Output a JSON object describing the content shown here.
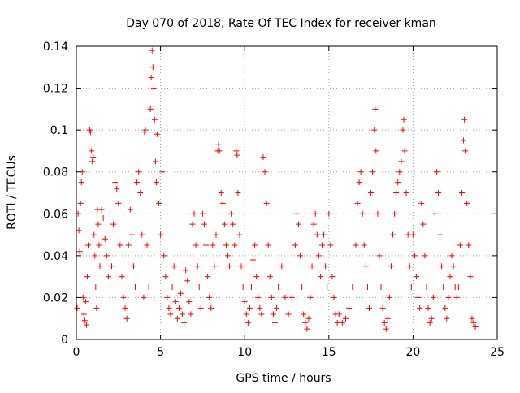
{
  "chart_data": {
    "type": "scatter",
    "title": "Day 070 of 2018, Rate Of TEC Index for receiver kman",
    "xlabel": "GPS time / hours",
    "ylabel": "ROTI / TECUs",
    "xlim": [
      0,
      25
    ],
    "ylim": [
      0,
      0.14
    ],
    "x_ticks": [
      0,
      5,
      10,
      15,
      20,
      25
    ],
    "x_tick_labels": [
      "0",
      "5",
      "10",
      "15",
      "20",
      "25"
    ],
    "y_ticks": [
      0,
      0.02,
      0.04,
      0.06,
      0.08,
      0.1,
      0.12,
      0.14
    ],
    "y_tick_labels": [
      "0",
      "0.02",
      "0.04",
      "0.06",
      "0.08",
      "0.1",
      "0.12",
      "0.14"
    ],
    "grid": true,
    "marker": "+",
    "series": [
      {
        "name": "ROTI",
        "color": "#ff0000",
        "points": [
          [
            0.05,
            0.015
          ],
          [
            0.1,
            0.06
          ],
          [
            0.15,
            0.052
          ],
          [
            0.2,
            0.042
          ],
          [
            0.25,
            0.065
          ],
          [
            0.3,
            0.075
          ],
          [
            0.35,
            0.08
          ],
          [
            0.4,
            0.02
          ],
          [
            0.45,
            0.012
          ],
          [
            0.5,
            0.009
          ],
          [
            0.55,
            0.018
          ],
          [
            0.6,
            0.007
          ],
          [
            0.65,
            0.03
          ],
          [
            0.7,
            0.045
          ],
          [
            0.8,
            0.1
          ],
          [
            0.85,
            0.099
          ],
          [
            0.9,
            0.09
          ],
          [
            0.95,
            0.085
          ],
          [
            1.0,
            0.087
          ],
          [
            1.05,
            0.05
          ],
          [
            1.1,
            0.04
          ],
          [
            1.15,
            0.025
          ],
          [
            1.2,
            0.015
          ],
          [
            1.25,
            0.062
          ],
          [
            1.3,
            0.055
          ],
          [
            1.35,
            0.045
          ],
          [
            1.4,
            0.035
          ],
          [
            1.5,
            0.062
          ],
          [
            1.6,
            0.058
          ],
          [
            1.7,
            0.048
          ],
          [
            1.8,
            0.04
          ],
          [
            1.9,
            0.03
          ],
          [
            2.0,
            0.025
          ],
          [
            2.1,
            0.035
          ],
          [
            2.2,
            0.055
          ],
          [
            2.3,
            0.075
          ],
          [
            2.4,
            0.072
          ],
          [
            2.5,
            0.065
          ],
          [
            2.6,
            0.045
          ],
          [
            2.7,
            0.03
          ],
          [
            2.8,
            0.02
          ],
          [
            2.9,
            0.015
          ],
          [
            3.0,
            0.01
          ],
          [
            3.1,
            0.045
          ],
          [
            3.2,
            0.062
          ],
          [
            3.3,
            0.05
          ],
          [
            3.4,
            0.035
          ],
          [
            3.5,
            0.025
          ],
          [
            3.6,
            0.075
          ],
          [
            3.7,
            0.08
          ],
          [
            3.8,
            0.07
          ],
          [
            3.9,
            0.05
          ],
          [
            4.0,
            0.02
          ],
          [
            4.05,
            0.099
          ],
          [
            4.1,
            0.1
          ],
          [
            4.2,
            0.045
          ],
          [
            4.3,
            0.025
          ],
          [
            4.4,
            0.11
          ],
          [
            4.45,
            0.125
          ],
          [
            4.5,
            0.138
          ],
          [
            4.55,
            0.13
          ],
          [
            4.6,
            0.12
          ],
          [
            4.65,
            0.105
          ],
          [
            4.7,
            0.085
          ],
          [
            4.75,
            0.075
          ],
          [
            4.8,
            0.098
          ],
          [
            4.9,
            0.065
          ],
          [
            5.0,
            0.05
          ],
          [
            5.1,
            0.08
          ],
          [
            5.2,
            0.04
          ],
          [
            5.3,
            0.03
          ],
          [
            5.4,
            0.02
          ],
          [
            5.5,
            0.015
          ],
          [
            5.6,
            0.012
          ],
          [
            5.7,
            0.025
          ],
          [
            5.8,
            0.035
          ],
          [
            5.9,
            0.018
          ],
          [
            6.0,
            0.01
          ],
          [
            6.1,
            0.015
          ],
          [
            6.2,
            0.022
          ],
          [
            6.3,
            0.012
          ],
          [
            6.4,
            0.008
          ],
          [
            6.5,
            0.033
          ],
          [
            6.6,
            0.028
          ],
          [
            6.7,
            0.018
          ],
          [
            6.8,
            0.012
          ],
          [
            6.9,
            0.055
          ],
          [
            7.0,
            0.06
          ],
          [
            7.1,
            0.045
          ],
          [
            7.2,
            0.035
          ],
          [
            7.3,
            0.025
          ],
          [
            7.4,
            0.015
          ],
          [
            7.5,
            0.06
          ],
          [
            7.6,
            0.055
          ],
          [
            7.7,
            0.045
          ],
          [
            7.8,
            0.03
          ],
          [
            7.9,
            0.02
          ],
          [
            8.0,
            0.015
          ],
          [
            8.1,
            0.045
          ],
          [
            8.2,
            0.035
          ],
          [
            8.3,
            0.05
          ],
          [
            8.4,
            0.09
          ],
          [
            8.45,
            0.093
          ],
          [
            8.5,
            0.09
          ],
          [
            8.6,
            0.07
          ],
          [
            8.7,
            0.065
          ],
          [
            8.8,
            0.055
          ],
          [
            8.9,
            0.045
          ],
          [
            9.0,
            0.04
          ],
          [
            9.1,
            0.035
          ],
          [
            9.2,
            0.06
          ],
          [
            9.3,
            0.055
          ],
          [
            9.4,
            0.045
          ],
          [
            9.5,
            0.09
          ],
          [
            9.55,
            0.088
          ],
          [
            9.6,
            0.07
          ],
          [
            9.7,
            0.05
          ],
          [
            9.8,
            0.035
          ],
          [
            9.9,
            0.025
          ],
          [
            10.0,
            0.018
          ],
          [
            10.1,
            0.012
          ],
          [
            10.2,
            0.008
          ],
          [
            10.3,
            0.015
          ],
          [
            10.4,
            0.025
          ],
          [
            10.5,
            0.038
          ],
          [
            10.6,
            0.045
          ],
          [
            10.7,
            0.03
          ],
          [
            10.8,
            0.02
          ],
          [
            10.9,
            0.015
          ],
          [
            11.0,
            0.012
          ],
          [
            11.1,
            0.087
          ],
          [
            11.2,
            0.08
          ],
          [
            11.3,
            0.065
          ],
          [
            11.4,
            0.045
          ],
          [
            11.5,
            0.03
          ],
          [
            11.6,
            0.02
          ],
          [
            11.7,
            0.012
          ],
          [
            11.8,
            0.008
          ],
          [
            11.9,
            0.015
          ],
          [
            12.0,
            0.025
          ],
          [
            12.2,
            0.035
          ],
          [
            12.4,
            0.02
          ],
          [
            12.6,
            0.012
          ],
          [
            12.8,
            0.02
          ],
          [
            13.0,
            0.045
          ],
          [
            13.1,
            0.06
          ],
          [
            13.2,
            0.055
          ],
          [
            13.3,
            0.04
          ],
          [
            13.4,
            0.025
          ],
          [
            13.5,
            0.012
          ],
          [
            13.6,
            0.008
          ],
          [
            13.7,
            0.005
          ],
          [
            13.8,
            0.01
          ],
          [
            13.9,
            0.02
          ],
          [
            14.0,
            0.035
          ],
          [
            14.1,
            0.055
          ],
          [
            14.2,
            0.06
          ],
          [
            14.3,
            0.05
          ],
          [
            14.4,
            0.04
          ],
          [
            14.5,
            0.03
          ],
          [
            14.6,
            0.045
          ],
          [
            14.7,
            0.05
          ],
          [
            14.8,
            0.035
          ],
          [
            14.9,
            0.025
          ],
          [
            15.0,
            0.06
          ],
          [
            15.1,
            0.045
          ],
          [
            15.2,
            0.03
          ],
          [
            15.3,
            0.02
          ],
          [
            15.4,
            0.012
          ],
          [
            15.5,
            0.008
          ],
          [
            15.6,
            0.012
          ],
          [
            15.8,
            0.008
          ],
          [
            16.0,
            0.01
          ],
          [
            16.2,
            0.015
          ],
          [
            16.4,
            0.025
          ],
          [
            16.6,
            0.045
          ],
          [
            16.7,
            0.065
          ],
          [
            16.8,
            0.075
          ],
          [
            16.9,
            0.08
          ],
          [
            17.0,
            0.06
          ],
          [
            17.1,
            0.045
          ],
          [
            17.2,
            0.035
          ],
          [
            17.3,
            0.025
          ],
          [
            17.4,
            0.015
          ],
          [
            17.5,
            0.07
          ],
          [
            17.6,
            0.08
          ],
          [
            17.7,
            0.1
          ],
          [
            17.75,
            0.11
          ],
          [
            17.8,
            0.09
          ],
          [
            17.9,
            0.06
          ],
          [
            18.0,
            0.04
          ],
          [
            18.1,
            0.025
          ],
          [
            18.2,
            0.015
          ],
          [
            18.3,
            0.008
          ],
          [
            18.4,
            0.005
          ],
          [
            18.5,
            0.01
          ],
          [
            18.6,
            0.02
          ],
          [
            18.7,
            0.035
          ],
          [
            18.8,
            0.05
          ],
          [
            18.9,
            0.06
          ],
          [
            19.0,
            0.07
          ],
          [
            19.1,
            0.075
          ],
          [
            19.2,
            0.08
          ],
          [
            19.3,
            0.085
          ],
          [
            19.4,
            0.1
          ],
          [
            19.45,
            0.105
          ],
          [
            19.5,
            0.09
          ],
          [
            19.6,
            0.07
          ],
          [
            19.7,
            0.05
          ],
          [
            19.8,
            0.035
          ],
          [
            19.9,
            0.025
          ],
          [
            20.0,
            0.05
          ],
          [
            20.1,
            0.04
          ],
          [
            20.2,
            0.03
          ],
          [
            20.3,
            0.02
          ],
          [
            20.4,
            0.015
          ],
          [
            20.5,
            0.065
          ],
          [
            20.6,
            0.055
          ],
          [
            20.7,
            0.04
          ],
          [
            20.8,
            0.025
          ],
          [
            20.9,
            0.015
          ],
          [
            21.0,
            0.008
          ],
          [
            21.1,
            0.01
          ],
          [
            21.2,
            0.02
          ],
          [
            21.3,
            0.06
          ],
          [
            21.4,
            0.08
          ],
          [
            21.5,
            0.07
          ],
          [
            21.6,
            0.05
          ],
          [
            21.7,
            0.035
          ],
          [
            21.8,
            0.025
          ],
          [
            21.9,
            0.015
          ],
          [
            22.0,
            0.01
          ],
          [
            22.1,
            0.02
          ],
          [
            22.2,
            0.03
          ],
          [
            22.3,
            0.04
          ],
          [
            22.4,
            0.035
          ],
          [
            22.5,
            0.025
          ],
          [
            22.6,
            0.02
          ],
          [
            22.7,
            0.025
          ],
          [
            22.8,
            0.045
          ],
          [
            22.9,
            0.07
          ],
          [
            23.0,
            0.095
          ],
          [
            23.05,
            0.105
          ],
          [
            23.1,
            0.09
          ],
          [
            23.2,
            0.065
          ],
          [
            23.3,
            0.045
          ],
          [
            23.4,
            0.03
          ],
          [
            23.5,
            0.01
          ],
          [
            23.6,
            0.008
          ],
          [
            23.7,
            0.006
          ]
        ]
      }
    ]
  }
}
